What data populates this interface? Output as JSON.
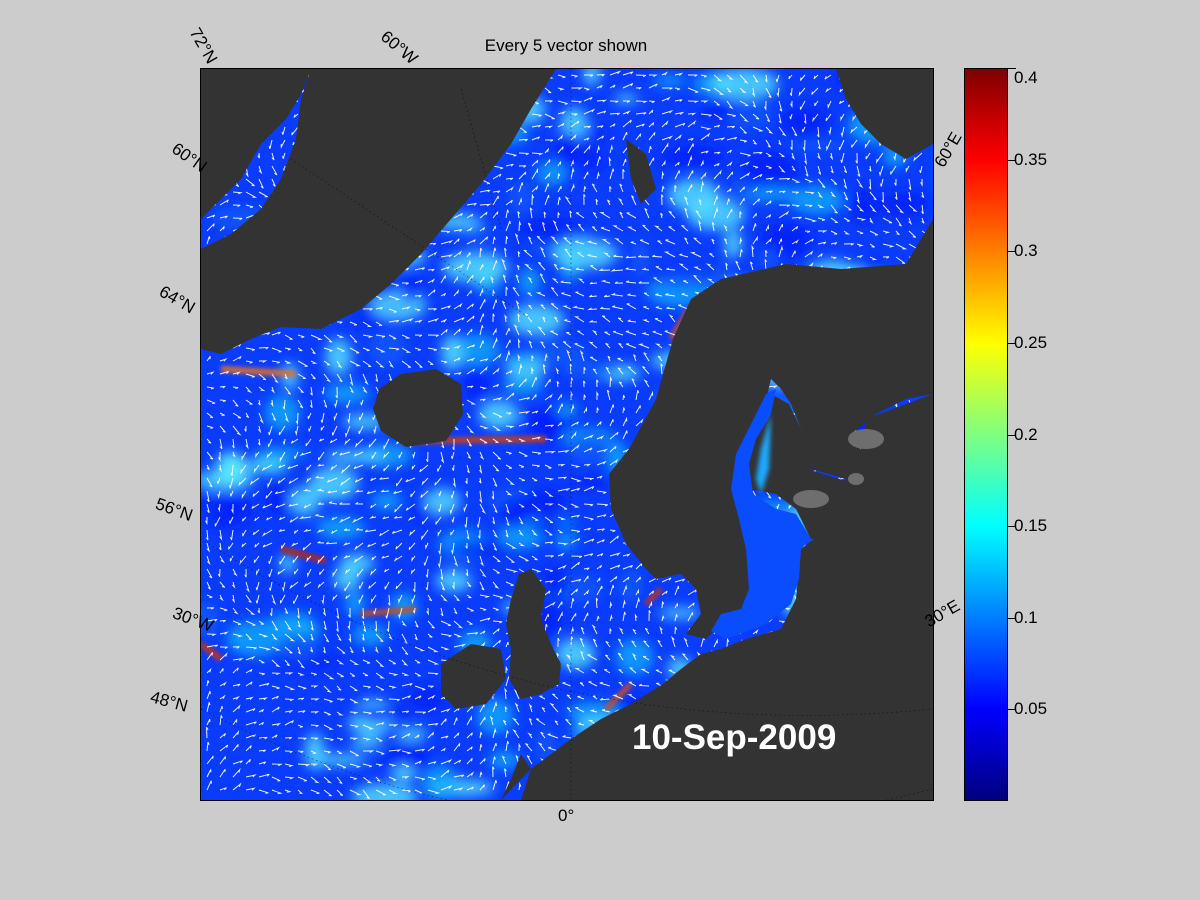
{
  "title": "Every 5 vector shown",
  "date_label": "10-Sep-2009",
  "map": {
    "lat_labels": [
      "72°N",
      "60°N",
      "64°N",
      "56°N",
      "48°N"
    ],
    "lon_labels": [
      "60°W",
      "30°W",
      "0°",
      "30°E",
      "60°E"
    ],
    "land_color": "#333333",
    "ocean_colors": [
      "#0018ff",
      "#0a5cff",
      "#14b4ff",
      "#5ef0ff"
    ]
  },
  "colorbar": {
    "min": 0,
    "max": 0.4,
    "ticks": [
      {
        "value": 0.4,
        "label": "0.4"
      },
      {
        "value": 0.35,
        "label": "0.35"
      },
      {
        "value": 0.3,
        "label": "0.3"
      },
      {
        "value": 0.25,
        "label": "0.25"
      },
      {
        "value": 0.2,
        "label": "0.2"
      },
      {
        "value": 0.15,
        "label": "0.15"
      },
      {
        "value": 0.1,
        "label": "0.1"
      },
      {
        "value": 0.05,
        "label": "0.05"
      }
    ],
    "colormap": [
      "#00007f",
      "#0000ff",
      "#007fff",
      "#00ffff",
      "#7fff7f",
      "#ffff00",
      "#ff7f00",
      "#ff0000",
      "#7f0000"
    ]
  }
}
